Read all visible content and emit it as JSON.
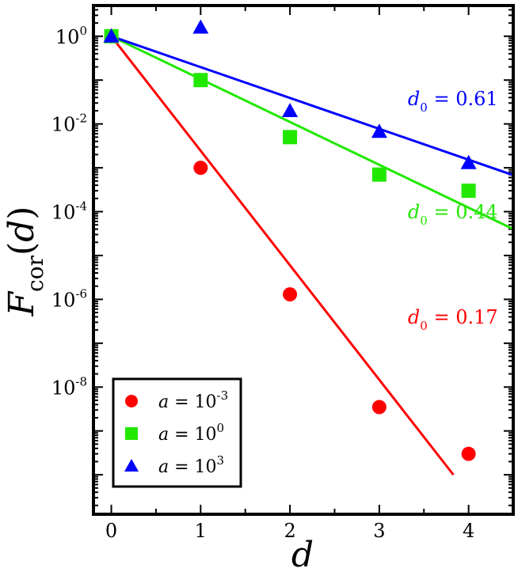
{
  "chart_data": {
    "type": "scatter",
    "xlabel": "d",
    "ylabel": {
      "main": "F",
      "sub": "cor",
      "arg": "(d)"
    },
    "xlim": [
      -0.2,
      4.5
    ],
    "ylim_log10": [
      -10.9,
      0.7
    ],
    "yscale": "log",
    "grid": false,
    "legend_position": "bottom-left",
    "x_ticks": [
      "0",
      "1",
      "2",
      "3",
      "4"
    ],
    "y_ticks": [
      {
        "base": "10",
        "exp": "0",
        "log": 0
      },
      {
        "base": "10",
        "exp": "-2",
        "log": -2
      },
      {
        "base": "10",
        "exp": "-4",
        "log": -4
      },
      {
        "base": "10",
        "exp": "-6",
        "log": -6
      },
      {
        "base": "10",
        "exp": "-8",
        "log": -8
      }
    ],
    "series": [
      {
        "name": "a = 10-3",
        "legend": {
          "var": "a",
          "eq": " = 10",
          "exp": "-3"
        },
        "marker": "circle",
        "color": "#ff0000",
        "x": [
          0,
          1,
          2,
          3,
          4
        ],
        "y": [
          1.0,
          0.001,
          1.3e-06,
          3.5e-09,
          3e-10
        ],
        "fit": {
          "x": [
            0,
            3.83
          ],
          "y": [
            1.0,
            1e-10
          ]
        },
        "d0_label": {
          "var": "d",
          "sub": "0",
          "text": " = 0.17",
          "anchor": [
            3.32,
            -6.55
          ]
        }
      },
      {
        "name": "a = 100",
        "legend": {
          "var": "a",
          "eq": " = 10",
          "exp": "0"
        },
        "marker": "square",
        "color": "#22e800",
        "x": [
          0,
          1,
          2,
          3,
          4
        ],
        "y": [
          1.0,
          0.1,
          0.005,
          0.0007,
          0.0003
        ],
        "fit": {
          "x": [
            0,
            4.5
          ],
          "y": [
            1.0,
            4e-05
          ]
        },
        "d0_label": {
          "var": "d",
          "sub": "0",
          "text": " = 0.44",
          "anchor": [
            3.32,
            -4.15
          ]
        }
      },
      {
        "name": "a = 103",
        "legend": {
          "var": "a",
          "eq": " = 10",
          "exp": "3"
        },
        "marker": "triangle",
        "color": "#0000ff",
        "x": [
          0,
          1,
          2,
          3,
          4
        ],
        "y": [
          1.0,
          1.6,
          0.02,
          0.0067,
          0.0013
        ],
        "fit": {
          "x": [
            0,
            4.5
          ],
          "y": [
            1.0,
            0.00068
          ]
        },
        "d0_label": {
          "var": "d",
          "sub": "0",
          "text": " = 0.61",
          "anchor": [
            3.32,
            -1.57
          ]
        }
      }
    ]
  }
}
